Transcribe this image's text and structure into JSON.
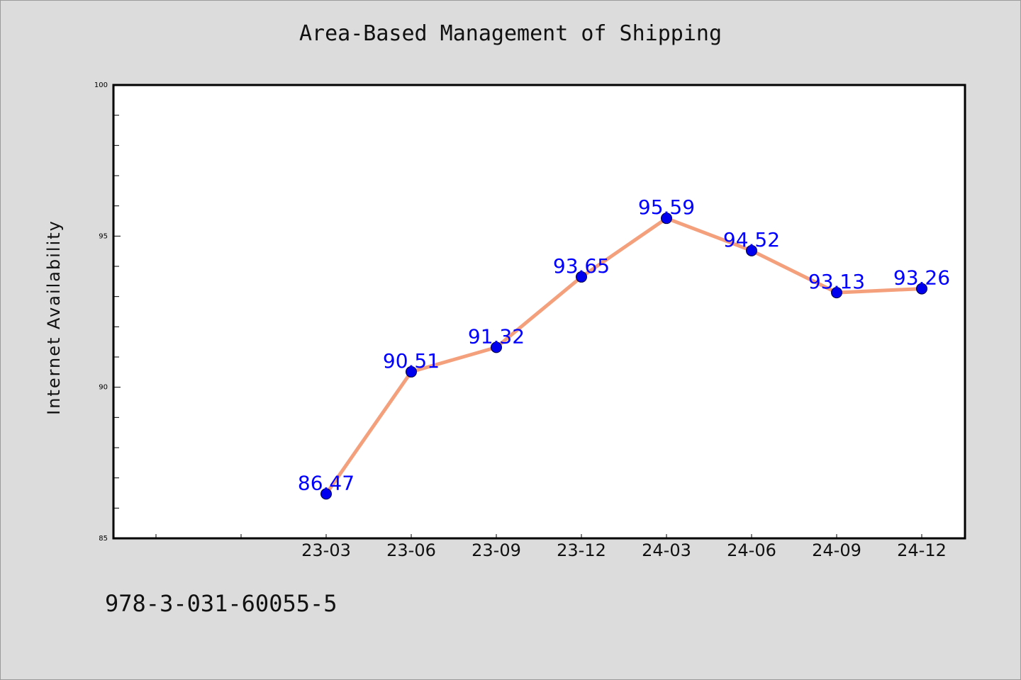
{
  "chart_data": {
    "type": "line",
    "title": "Area-Based Management of Shipping",
    "xlabel": "",
    "ylabel": "Internet Availability",
    "categories": [
      "23-03",
      "23-06",
      "23-09",
      "23-12",
      "24-03",
      "24-06",
      "24-09",
      "24-12"
    ],
    "values": [
      86.47,
      90.51,
      91.32,
      93.65,
      95.59,
      94.52,
      93.13,
      93.26
    ],
    "ylim": [
      85,
      100
    ],
    "yticks": [
      "85",
      "90",
      "95",
      "100"
    ],
    "grid": false,
    "line_color": "#f4a07c",
    "marker_color": "#0000ee",
    "label_color": "#0000ff"
  },
  "footer": {
    "code": "978-3-031-60055-5"
  }
}
